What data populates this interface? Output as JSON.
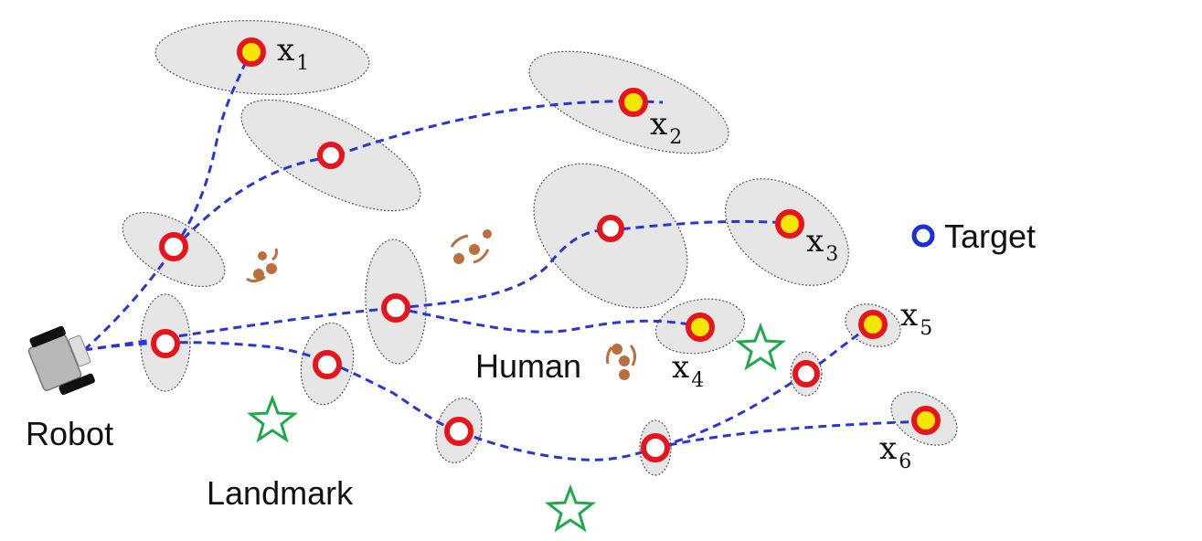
{
  "labels": {
    "robot": "Robot",
    "landmark": "Landmark",
    "human": "Human",
    "target": "Target"
  },
  "nodes": [
    {
      "id": "x1",
      "main": "x",
      "sub": "1"
    },
    {
      "id": "x2",
      "main": "x",
      "sub": "2"
    },
    {
      "id": "x3",
      "main": "x",
      "sub": "3"
    },
    {
      "id": "x4",
      "main": "x",
      "sub": "4"
    },
    {
      "id": "x5",
      "main": "x",
      "sub": "5"
    },
    {
      "id": "x6",
      "main": "x",
      "sub": "6"
    }
  ],
  "colors": {
    "path": "#2a35d6",
    "node_ring": "#e8141b",
    "target_fill": "#f5e600",
    "ellipse_fill": "#e6e6e6",
    "landmark": "#1faa4a",
    "legend_ring": "#1c2fd6",
    "human": "#b0561d"
  }
}
